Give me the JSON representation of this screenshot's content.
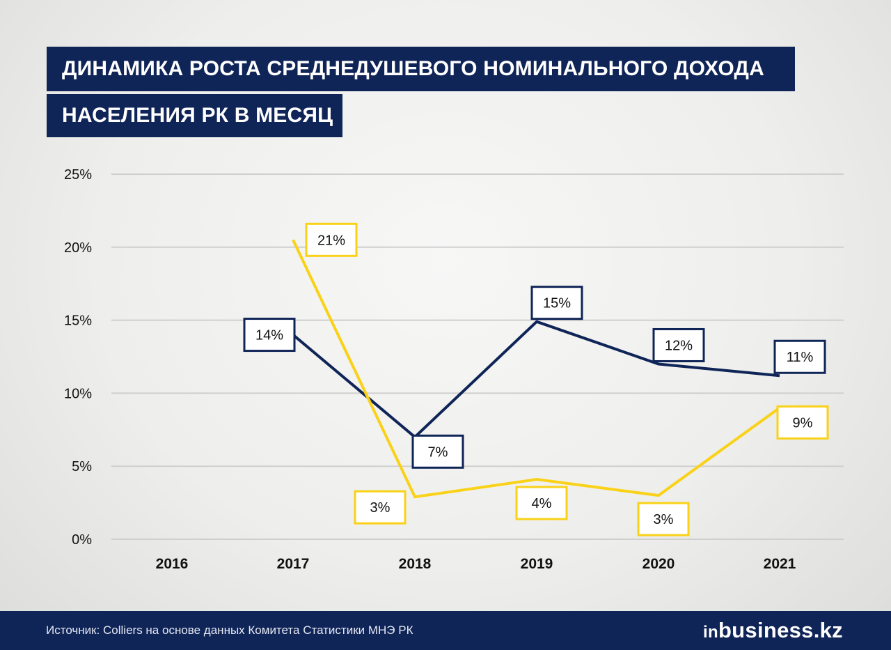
{
  "title_line1": "ДИНАМИКА РОСТА СРЕДНЕДУШЕВОГО НОМИНАЛЬНОГО ДОХОДА",
  "title_line2": "НАСЕЛЕНИЯ РК В МЕСЯЦ",
  "footer": {
    "source": "Источник: Colliers на основе данных Комитета Статистики МНЭ РК",
    "logo_prefix": "in",
    "logo_rest": "business.kz"
  },
  "colors": {
    "navy": "#0f2457",
    "yellow": "#f9d218",
    "grid": "#cfcfcf"
  },
  "chart_data": {
    "type": "line",
    "categories": [
      "2016",
      "2017",
      "2018",
      "2019",
      "2020",
      "2021"
    ],
    "ylim": [
      0,
      25
    ],
    "yticks": [
      0,
      5,
      10,
      15,
      20,
      25
    ],
    "ytick_labels": [
      "0%",
      "5%",
      "10%",
      "15%",
      "20%",
      "25%"
    ],
    "grid": "horizontal",
    "series": [
      {
        "color": "#0f2457",
        "values": [
          null,
          14,
          7,
          14.9,
          12,
          11.2
        ],
        "labels": [
          null,
          "14%",
          "7%",
          "15%",
          "12%",
          "11%"
        ],
        "label_positions": [
          null,
          "left",
          "below-right",
          "above",
          "above",
          "above"
        ]
      },
      {
        "color": "#f9d218",
        "values": [
          null,
          20.5,
          2.9,
          4.1,
          3,
          9
        ],
        "labels": [
          null,
          "21%",
          "3%",
          "4%",
          "3%",
          "9%"
        ],
        "label_positions": [
          null,
          "right",
          "below-left",
          "below",
          "below",
          "below-right"
        ]
      }
    ]
  }
}
